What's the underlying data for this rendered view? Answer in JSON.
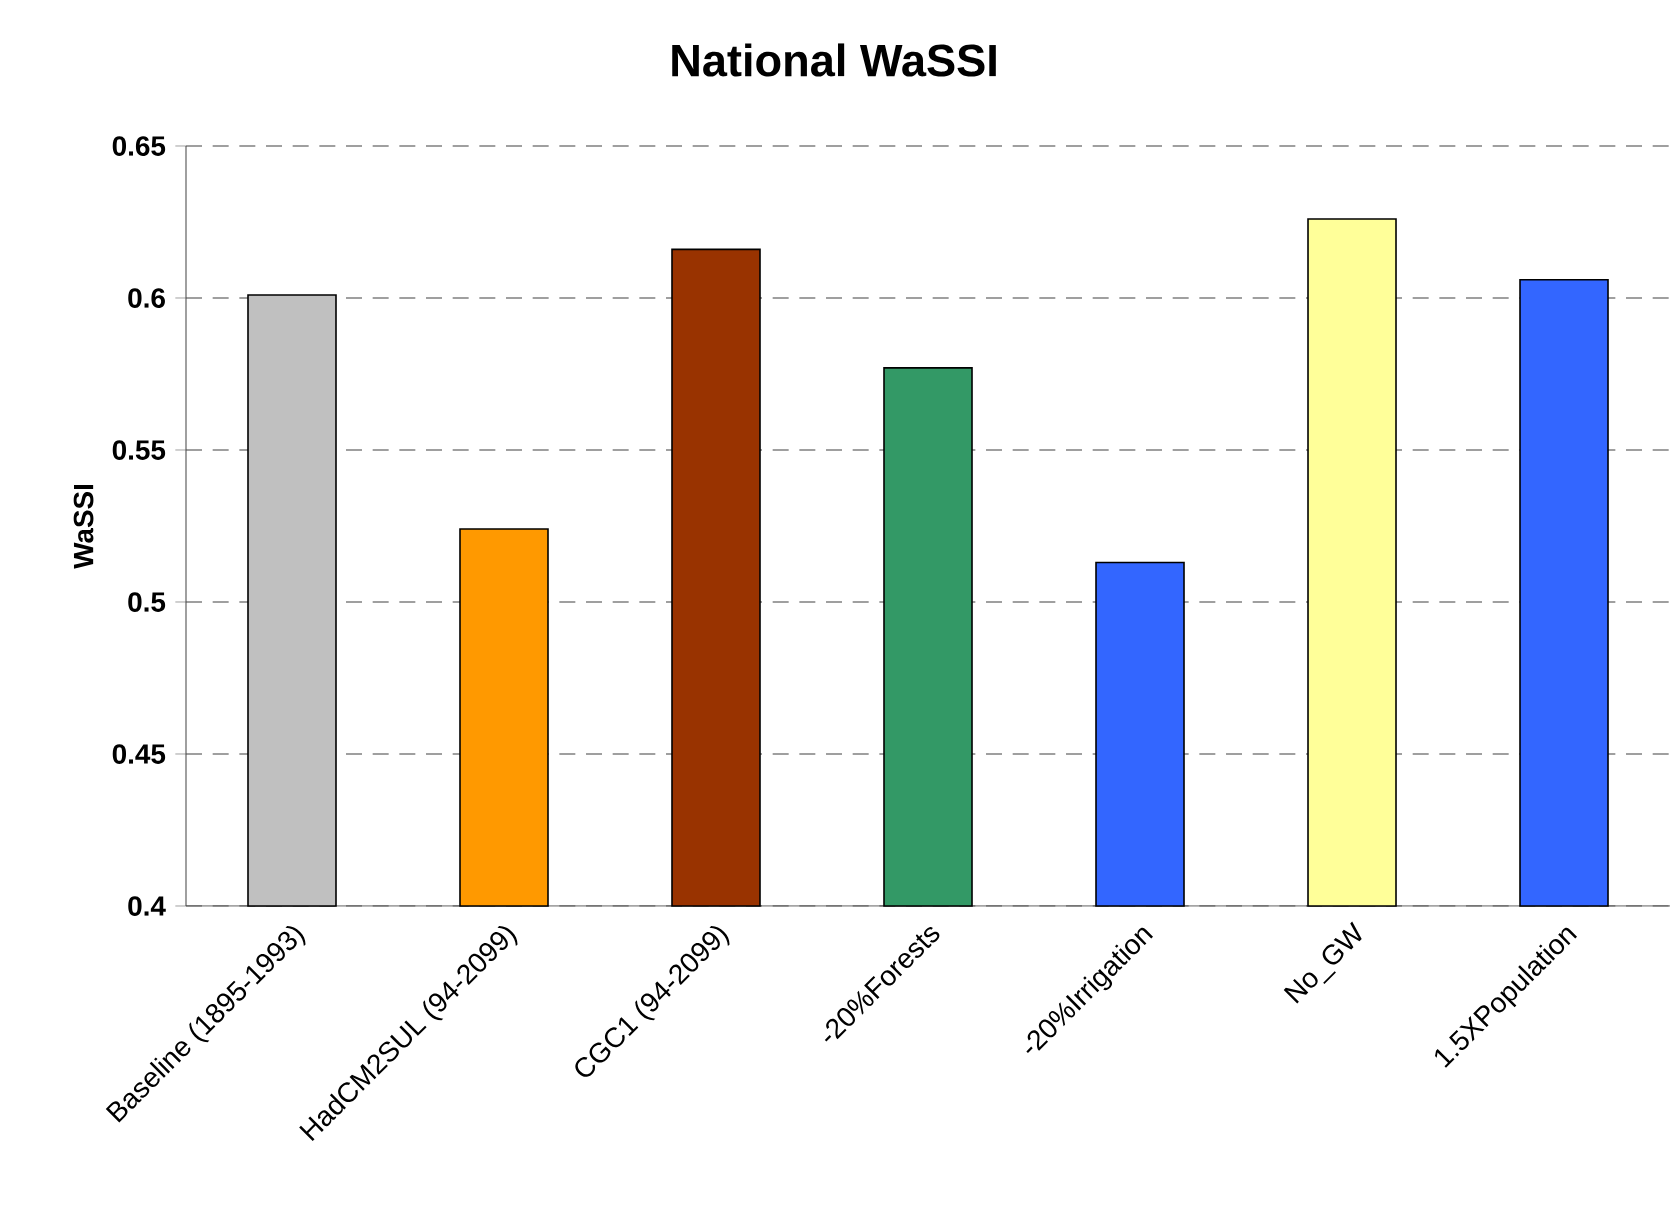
{
  "chart_data": {
    "type": "bar",
    "title": "National WaSSI",
    "ylabel": "WaSSI",
    "categories": [
      "Baseline (1895-1993)",
      "HadCM2SUL (94-2099)",
      "CGC1 (94-2099)",
      "-20%Forests",
      "-20%Irrigation",
      "No_GW",
      "1.5XPopulation"
    ],
    "values": [
      0.601,
      0.524,
      0.616,
      0.577,
      0.513,
      0.626,
      0.606
    ],
    "colors": [
      "#c0c0c0",
      "#ff9900",
      "#993300",
      "#339966",
      "#3366ff",
      "#ffff99",
      "#3366ff"
    ],
    "ylim": [
      0.4,
      0.65
    ],
    "yticks": [
      0.4,
      0.45,
      0.5,
      0.55,
      0.6,
      0.65
    ],
    "grid": "y"
  }
}
